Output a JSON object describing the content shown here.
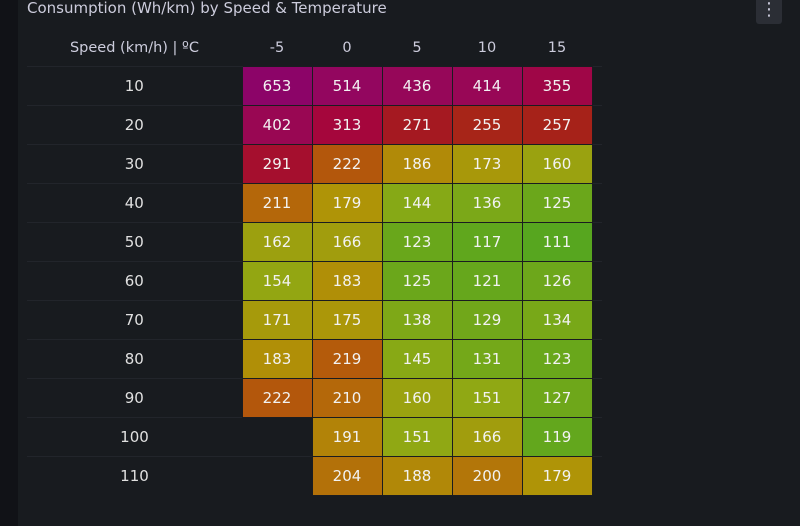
{
  "panel": {
    "title": "Consumption (Wh/km) by Speed & Temperature",
    "menu_icon": "kebab-vertical-icon"
  },
  "chart_data": {
    "type": "heatmap",
    "title": "Consumption (Wh/km) by Speed & Temperature",
    "corner_label": "Speed (km/h) | ºC",
    "columns": [
      "-5",
      "0",
      "5",
      "10",
      "15"
    ],
    "rows": [
      {
        "speed": "10",
        "values": [
          653,
          514,
          436,
          414,
          355
        ]
      },
      {
        "speed": "20",
        "values": [
          402,
          313,
          271,
          255,
          257
        ]
      },
      {
        "speed": "30",
        "values": [
          291,
          222,
          186,
          173,
          160
        ]
      },
      {
        "speed": "40",
        "values": [
          211,
          179,
          144,
          136,
          125
        ]
      },
      {
        "speed": "50",
        "values": [
          162,
          166,
          123,
          117,
          111
        ]
      },
      {
        "speed": "60",
        "values": [
          154,
          183,
          125,
          121,
          126
        ]
      },
      {
        "speed": "70",
        "values": [
          171,
          175,
          138,
          129,
          134
        ]
      },
      {
        "speed": "80",
        "values": [
          183,
          219,
          145,
          131,
          123
        ]
      },
      {
        "speed": "90",
        "values": [
          222,
          210,
          160,
          151,
          127
        ]
      },
      {
        "speed": "100",
        "values": [
          null,
          191,
          151,
          166,
          119
        ]
      },
      {
        "speed": "110",
        "values": [
          null,
          204,
          188,
          200,
          179
        ]
      }
    ],
    "color_scale": {
      "stops": [
        {
          "value": 110,
          "color": "#56a61f"
        },
        {
          "value": 150,
          "color": "#8fa914"
        },
        {
          "value": 180,
          "color": "#b09307"
        },
        {
          "value": 215,
          "color": "#b5610a"
        },
        {
          "value": 260,
          "color": "#a51e1a"
        },
        {
          "value": 310,
          "color": "#a5063b"
        },
        {
          "value": 420,
          "color": "#970758"
        },
        {
          "value": 650,
          "color": "#8c0468"
        }
      ]
    }
  }
}
